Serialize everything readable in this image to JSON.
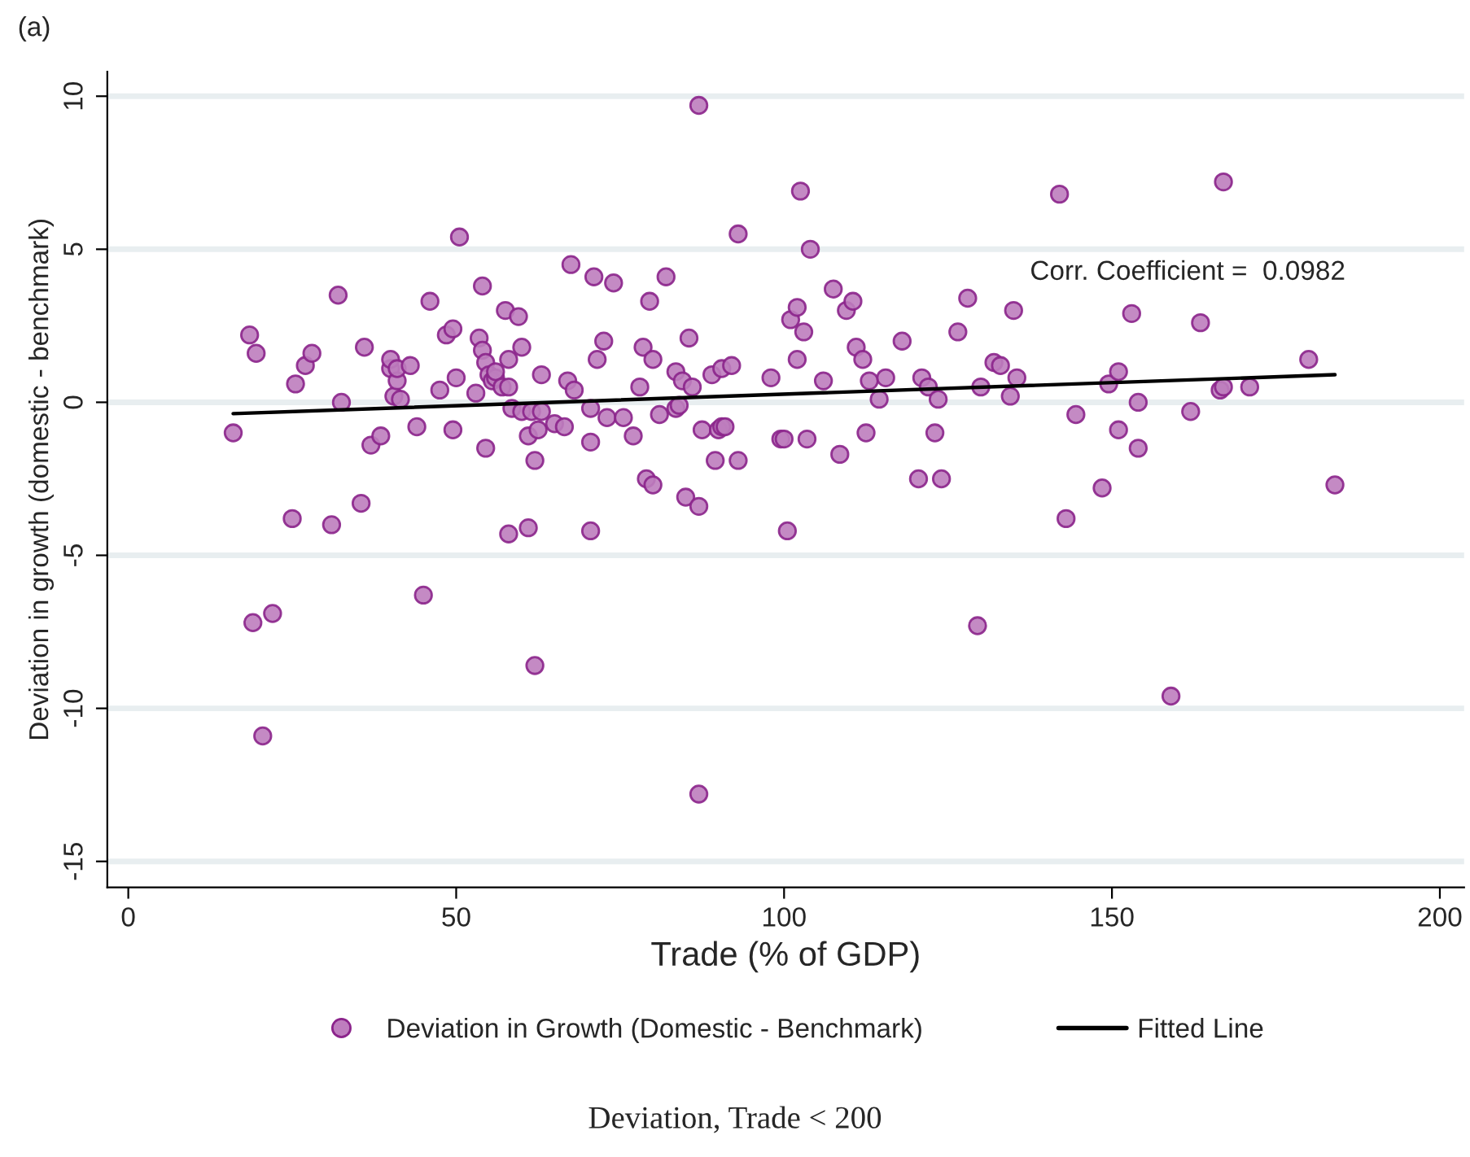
{
  "chart_data": {
    "type": "scatter",
    "xlabel": "Trade (% of GDP)",
    "ylabel": "Deviation in growth (domestic - benchmark)",
    "annotations": [
      "(a)",
      "Corr. Coefficient =  0.0982",
      "Deviation, Trade < 200"
    ],
    "xlim": [
      -3.2,
      203.7
    ],
    "xticks": [
      0,
      50,
      100,
      150,
      200
    ],
    "ylim": [
      -15.85,
      10.8
    ],
    "yticks": [
      -15,
      -10,
      -5,
      0,
      5,
      10
    ],
    "grid": "y",
    "legend": "bottom",
    "marker": "circle",
    "series": [
      {
        "name": "Deviation in Growth (Domestic - Benchmark)",
        "color": "#be7dbe",
        "x": [
          16,
          18.5,
          19,
          19.5,
          20.5,
          22,
          25,
          25.5,
          27,
          28,
          31,
          32,
          32.5,
          35.5,
          36,
          37,
          38.5,
          40,
          40,
          40.5,
          41,
          41,
          41.5,
          43,
          44,
          45,
          46,
          47.5,
          48.5,
          49.5,
          49.5,
          50,
          50.5,
          53,
          53.5,
          54,
          54,
          54.5,
          54.5,
          55,
          55.5,
          56,
          56,
          57,
          57.5,
          58,
          58,
          58,
          58.5,
          59.5,
          60,
          60,
          61,
          61,
          61.5,
          62,
          62,
          62.5,
          63,
          63,
          65,
          66.5,
          67,
          67.5,
          68,
          70.5,
          70.5,
          70.5,
          71,
          71.5,
          72.5,
          73,
          74,
          75.5,
          77,
          78,
          78.5,
          79,
          79.5,
          80,
          80,
          81,
          82,
          83.5,
          83.5,
          84,
          84.5,
          85,
          85.5,
          86,
          87,
          87,
          87,
          87.5,
          89,
          89.5,
          90,
          90.5,
          90.5,
          91,
          92,
          93,
          93,
          98,
          99.5,
          100,
          100.5,
          101,
          102,
          102,
          102.5,
          103,
          103.5,
          104,
          106,
          107.5,
          108.5,
          109.5,
          110.5,
          111,
          112,
          112.5,
          113,
          114.5,
          115.5,
          118,
          120.5,
          121,
          122,
          123,
          123.5,
          124,
          126.5,
          128,
          129.5,
          130,
          132,
          133,
          134.5,
          135,
          135.5,
          142,
          143,
          144.5,
          148.5,
          149.5,
          151,
          151,
          153,
          154,
          154,
          159,
          162,
          163.5,
          166.5,
          167,
          167,
          171,
          180,
          184
        ],
        "values": [
          -1.0,
          2.2,
          -7.2,
          1.6,
          -10.9,
          -6.9,
          -3.8,
          0.6,
          1.2,
          1.6,
          -4.0,
          3.5,
          0,
          -3.3,
          1.8,
          -1.4,
          -1.1,
          1.1,
          1.4,
          0.2,
          0.7,
          1.1,
          0.1,
          1.2,
          -0.8,
          -6.3,
          3.3,
          0.4,
          2.2,
          -0.9,
          2.4,
          0.8,
          5.4,
          0.3,
          2.1,
          1.7,
          3.8,
          1.3,
          -1.5,
          0.9,
          0.7,
          0.8,
          1.0,
          0.5,
          3.0,
          -4.3,
          1.4,
          0.5,
          -0.2,
          2.8,
          1.8,
          -0.3,
          -1.1,
          -4.1,
          -0.3,
          -8.6,
          -1.9,
          -0.9,
          -0.3,
          0.9,
          -0.7,
          -0.8,
          0.7,
          4.5,
          0.4,
          -1.3,
          -4.2,
          -0.2,
          4.1,
          1.4,
          2.0,
          -0.5,
          3.9,
          -0.5,
          -1.1,
          0.5,
          1.8,
          -2.5,
          3.3,
          -2.7,
          1.4,
          -0.4,
          4.1,
          -0.2,
          1.0,
          -0.1,
          0.7,
          -3.1,
          2.1,
          0.5,
          -3.4,
          9.7,
          -12.8,
          -0.9,
          0.9,
          -1.9,
          -0.9,
          -0.8,
          1.1,
          -0.8,
          1.2,
          5.5,
          -1.9,
          0.8,
          -1.2,
          -1.2,
          -4.2,
          2.7,
          3.1,
          1.4,
          6.9,
          2.3,
          -1.2,
          5.0,
          0.7,
          3.7,
          -1.7,
          3.0,
          3.3,
          1.8,
          1.4,
          -1.0,
          0.7,
          0.1,
          0.8,
          2.0,
          -2.5,
          0.8,
          0.5,
          -1.0,
          0.1,
          -2.5,
          2.3,
          3.4,
          -7.3,
          0.5,
          1.3,
          1.2,
          0.2,
          3.0,
          0.8,
          6.8,
          -3.8,
          -0.4,
          -2.8,
          0.6,
          1.0,
          -0.9,
          2.9,
          -1.5,
          0.0,
          -9.6,
          -0.3,
          2.6,
          0.4,
          7.2,
          0.5,
          0.5,
          1.4,
          -2.7
        ]
      },
      {
        "name": "Fitted Line",
        "color": "#000000",
        "type": "line",
        "marker": "none",
        "x": [
          16,
          184
        ],
        "values": [
          -0.37,
          0.9
        ]
      }
    ]
  }
}
